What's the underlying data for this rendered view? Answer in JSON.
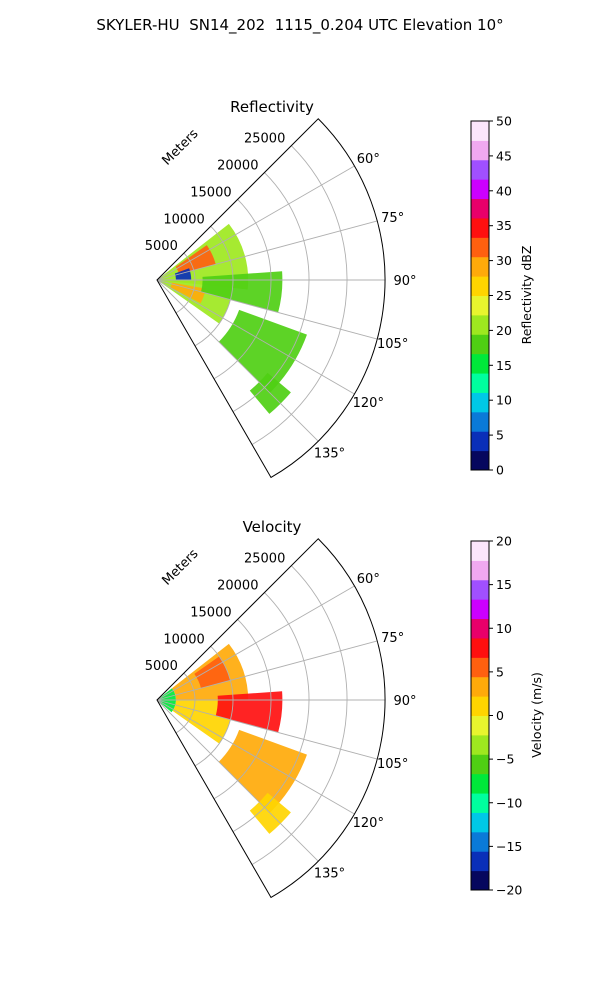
{
  "suptitle": "SKYLER-HU  SN14_202  1115_0.204 UTC Elevation 10°",
  "range_unit_label": "Meters",
  "chart_data": [
    {
      "type": "heatmap",
      "subtype": "polar-sector-radar-ppi",
      "title": "Reflectivity",
      "colorbar_label": "Reflectivity dBZ",
      "azimuth_range_deg": [
        45,
        150
      ],
      "azimuth_ticks": [
        "60°",
        "75°",
        "90°",
        "105°",
        "120°",
        "135°"
      ],
      "range_ticks": [
        "5000",
        "10000",
        "15000",
        "20000",
        "25000"
      ],
      "range_max_m": 30000,
      "colorbar_range": [
        0,
        50
      ],
      "colorbar_ticks": [
        "0",
        "5",
        "10",
        "15",
        "20",
        "25",
        "30",
        "35",
        "40",
        "45",
        "50"
      ],
      "colormap": [
        "#06075e",
        "#0a2fb8",
        "#0a7ad8",
        "#00c8e6",
        "#00ff9e",
        "#00e83a",
        "#4fcf13",
        "#9ee81f",
        "#e8f52e",
        "#ffd500",
        "#ffaa0a",
        "#ff6010",
        "#ff1010",
        "#e8006a",
        "#cc00ff",
        "#a050ff",
        "#f0a8f0",
        "#fbe6fb"
      ],
      "grid": true,
      "echoes": [
        {
          "az_start": 52,
          "az_end": 96,
          "r_start": 300,
          "r_end": 12000,
          "value": 20
        },
        {
          "az_start": 55,
          "az_end": 75,
          "r_start": 3000,
          "r_end": 8000,
          "value": 31
        },
        {
          "az_start": 70,
          "az_end": 90,
          "r_start": 2500,
          "r_end": 4500,
          "value": 4
        },
        {
          "az_start": 90,
          "az_end": 125,
          "r_start": 300,
          "r_end": 10000,
          "value": 20
        },
        {
          "az_start": 100,
          "az_end": 118,
          "r_start": 2000,
          "r_end": 6500,
          "value": 28
        },
        {
          "az_start": 86,
          "az_end": 105,
          "r_start": 6000,
          "r_end": 16500,
          "value": 18
        },
        {
          "az_start": 110,
          "az_end": 135,
          "r_start": 11500,
          "r_end": 21000,
          "value": 17
        },
        {
          "az_start": 130,
          "az_end": 140,
          "r_start": 19000,
          "r_end": 23000,
          "value": 17
        }
      ]
    },
    {
      "type": "heatmap",
      "subtype": "polar-sector-radar-ppi",
      "title": "Velocity",
      "colorbar_label": "Velocity (m/s)",
      "azimuth_range_deg": [
        45,
        150
      ],
      "azimuth_ticks": [
        "60°",
        "75°",
        "90°",
        "105°",
        "120°",
        "135°"
      ],
      "range_ticks": [
        "5000",
        "10000",
        "15000",
        "20000",
        "25000"
      ],
      "range_max_m": 30000,
      "colorbar_range": [
        -20,
        20
      ],
      "colorbar_ticks": [
        "−20",
        "−15",
        "−10",
        "−5",
        "0",
        "5",
        "10",
        "15",
        "20"
      ],
      "colormap": [
        "#06075e",
        "#0a2fb8",
        "#0a7ad8",
        "#00c8e6",
        "#00ff9e",
        "#00e83a",
        "#4fcf13",
        "#9ee81f",
        "#e8f52e",
        "#ffd500",
        "#ffaa0a",
        "#ff6010",
        "#ff1010",
        "#e8006a",
        "#cc00ff",
        "#a050ff",
        "#f0a8f0",
        "#fbe6fb"
      ],
      "grid": true,
      "echoes": [
        {
          "az_start": 52,
          "az_end": 130,
          "r_start": 300,
          "r_end": 2500,
          "value": -7
        },
        {
          "az_start": 52,
          "az_end": 90,
          "r_start": 2500,
          "r_end": 12000,
          "value": 3
        },
        {
          "az_start": 55,
          "az_end": 75,
          "r_start": 6000,
          "r_end": 10000,
          "value": 6
        },
        {
          "az_start": 90,
          "az_end": 125,
          "r_start": 2500,
          "r_end": 10000,
          "value": 1
        },
        {
          "az_start": 86,
          "az_end": 105,
          "r_start": 8000,
          "r_end": 16500,
          "value": 8
        },
        {
          "az_start": 110,
          "az_end": 135,
          "r_start": 11500,
          "r_end": 21000,
          "value": 4
        },
        {
          "az_start": 130,
          "az_end": 140,
          "r_start": 19000,
          "r_end": 23000,
          "value": 2
        }
      ]
    }
  ]
}
